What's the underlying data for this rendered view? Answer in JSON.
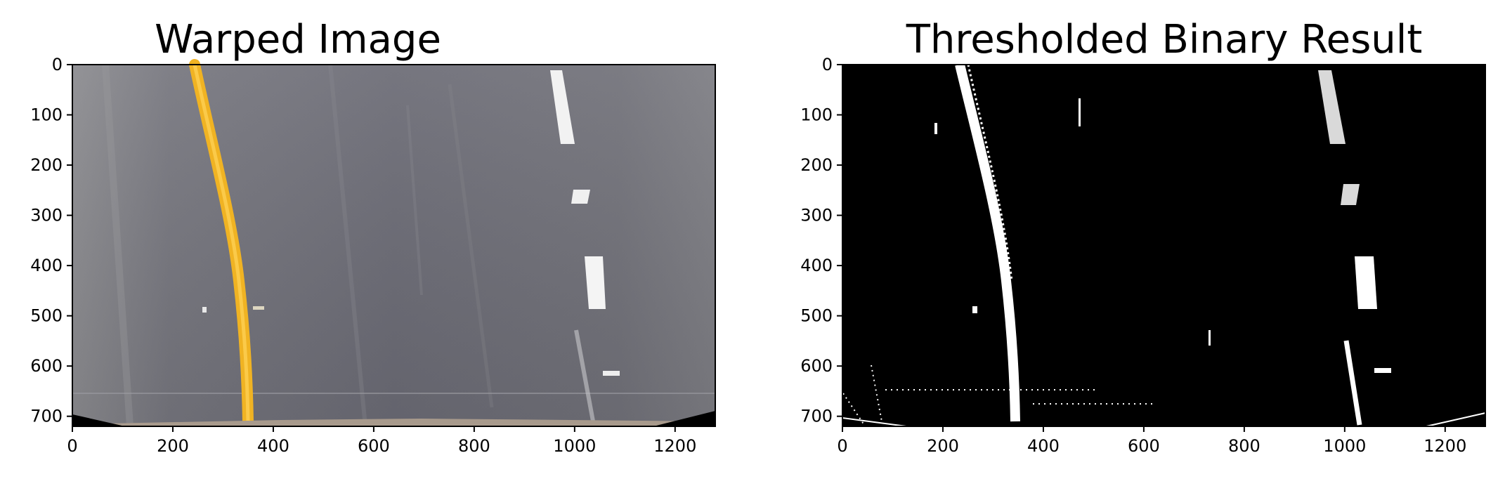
{
  "figure": {
    "panels": [
      {
        "id": "warped",
        "title": "Warped Image",
        "image_kind": "color-road",
        "xlim": [
          0,
          1280
        ],
        "ylim": [
          0,
          720
        ],
        "xticks": [
          0,
          200,
          400,
          600,
          800,
          1000,
          1200
        ],
        "yticks": [
          0,
          100,
          200,
          300,
          400,
          500,
          600,
          700
        ]
      },
      {
        "id": "binary",
        "title": "Thresholded Binary Result",
        "image_kind": "binary",
        "xlim": [
          0,
          1280
        ],
        "ylim": [
          0,
          720
        ],
        "xticks": [
          0,
          200,
          400,
          600,
          800,
          1000,
          1200
        ],
        "yticks": [
          0,
          100,
          200,
          300,
          400,
          500,
          600,
          700
        ]
      }
    ],
    "colors": {
      "asphalt": "#6c6c76",
      "yellow_lane": "#f0b323",
      "white_lane": "#f2f2f2",
      "binary_bg": "#000000",
      "binary_fg": "#ffffff"
    }
  }
}
